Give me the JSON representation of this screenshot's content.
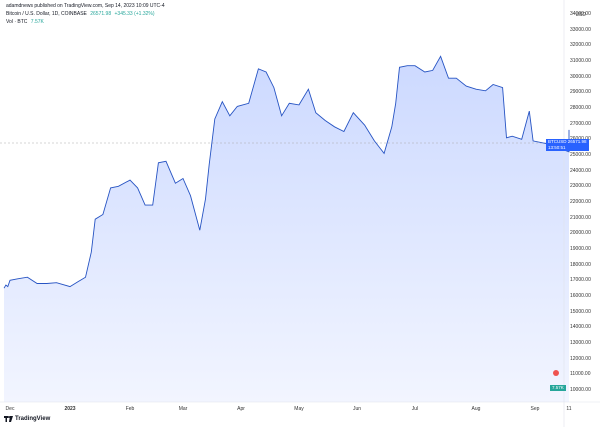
{
  "header": {
    "credit": "adamdnews published on TradingView.com, Sep 14, 2023 10:09 UTC-4",
    "symbol_line": "Bitcoin / U.S. Dollar, 1D, COINBASE",
    "price": "26571.98",
    "change": "+345.33 (+1.32%)",
    "vol_label": "Vol · BTC",
    "vol_value": "7.57K"
  },
  "axis": {
    "currency": "USD",
    "y_ticks": [
      "34000.00",
      "33000.00",
      "32000.00",
      "31000.00",
      "30000.00",
      "29000.00",
      "28000.00",
      "27000.00",
      "26000.00",
      "25000.00",
      "24000.00",
      "23000.00",
      "22000.00",
      "21000.00",
      "20000.00",
      "19000.00",
      "18000.00",
      "17000.00",
      "16000.00",
      "15000.00",
      "14000.00",
      "13000.00",
      "12000.00",
      "11000.00",
      "10000.00"
    ],
    "x_ticks": [
      "Dec",
      "2023",
      "Feb",
      "Mar",
      "Apr",
      "May",
      "Jun",
      "Jul",
      "Aug",
      "Sep",
      "11"
    ]
  },
  "price_tag": {
    "symbol": "BTCUSD",
    "value": "26571.98",
    "countdown": "13:50:51"
  },
  "vol_tag": "7.57K",
  "footer": {
    "logo_text": "TradingView"
  },
  "colors": {
    "line": "#2754c3",
    "area_top": "#ccd9ff",
    "area_bottom": "#f2f5ff",
    "vol_up": "#26a69a",
    "vol_down": "#ef5350",
    "tag": "#2962ff"
  },
  "chart_data": {
    "type": "area",
    "title": "Bitcoin / U.S. Dollar, 1D, COINBASE",
    "ylabel": "USD",
    "ylim": [
      10000,
      34000
    ],
    "x": [
      "2022-11-15",
      "2022-11-20",
      "2022-11-25",
      "2022-12-01",
      "2022-12-05",
      "2022-12-10",
      "2022-12-15",
      "2022-12-20",
      "2022-12-25",
      "2023-01-01",
      "2023-01-05",
      "2023-01-09",
      "2023-01-12",
      "2023-01-14",
      "2023-01-18",
      "2023-01-22",
      "2023-01-26",
      "2023-02-01",
      "2023-02-05",
      "2023-02-09",
      "2023-02-13",
      "2023-02-16",
      "2023-02-20",
      "2023-02-25",
      "2023-03-01",
      "2023-03-05",
      "2023-03-10",
      "2023-03-13",
      "2023-03-15",
      "2023-03-18",
      "2023-03-22",
      "2023-03-26",
      "2023-03-30",
      "2023-04-05",
      "2023-04-10",
      "2023-04-14",
      "2023-04-18",
      "2023-04-22",
      "2023-04-26",
      "2023-05-01",
      "2023-05-06",
      "2023-05-10",
      "2023-05-15",
      "2023-05-20",
      "2023-05-25",
      "2023-05-30",
      "2023-06-05",
      "2023-06-10",
      "2023-06-15",
      "2023-06-19",
      "2023-06-21",
      "2023-06-23",
      "2023-06-27",
      "2023-07-01",
      "2023-07-06",
      "2023-07-10",
      "2023-07-14",
      "2023-07-18",
      "2023-07-22",
      "2023-07-27",
      "2023-08-01",
      "2023-08-06",
      "2023-08-10",
      "2023-08-15",
      "2023-08-17",
      "2023-08-20",
      "2023-08-25",
      "2023-08-29",
      "2023-08-31",
      "2023-09-05",
      "2023-09-11",
      "2023-09-14"
    ],
    "series": [
      {
        "values": [
          16500,
          16700,
          16600,
          17000,
          17100,
          17200,
          16800,
          16800,
          16850,
          16600,
          16900,
          17200,
          18800,
          20900,
          21200,
          22900,
          23000,
          23400,
          22900,
          21800,
          21800,
          24500,
          24600,
          23200,
          23500,
          22400,
          20200,
          22200,
          24400,
          27300,
          28400,
          27500,
          28100,
          28300,
          30500,
          30300,
          29300,
          27500,
          28300,
          28200,
          29200,
          27700,
          27200,
          26800,
          26500,
          27700,
          26900,
          25900,
          25100,
          26800,
          28300,
          30600,
          30700,
          30700,
          30300,
          30400,
          31300,
          29900,
          29900,
          29400,
          29200,
          29100,
          29500,
          29300,
          26100,
          26200,
          26000,
          27800,
          25900,
          25700,
          25200,
          26600
        ]
      }
    ],
    "volume_color_cycle": "mixed up/down daily volume bars"
  }
}
